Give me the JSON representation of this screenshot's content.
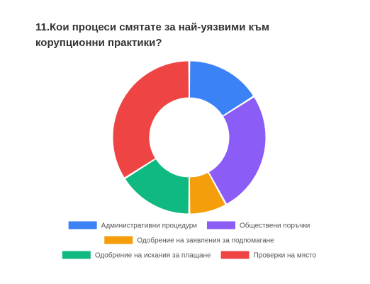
{
  "question": {
    "title": "11.Кои процеси смятате за най-уязвими към корупционни практики?"
  },
  "chart_data": {
    "type": "pie",
    "donut": true,
    "title": "11.Кои процеси смятате за най-уязвими към корупционни практики?",
    "slices": [
      {
        "label": "Административни процедури",
        "value": 16,
        "color": "#3b82f6"
      },
      {
        "label": "Обществени поръчки",
        "value": 26,
        "color": "#8b5cf6"
      },
      {
        "label": "Одобрение на заявления за подпомагане",
        "value": 8,
        "color": "#f59e0b"
      },
      {
        "label": "Одобрение на искания за плащане",
        "value": 16,
        "color": "#10b981"
      },
      {
        "label": "Проверки на място",
        "value": 34,
        "color": "#ef4444"
      }
    ],
    "legend_position": "bottom"
  }
}
